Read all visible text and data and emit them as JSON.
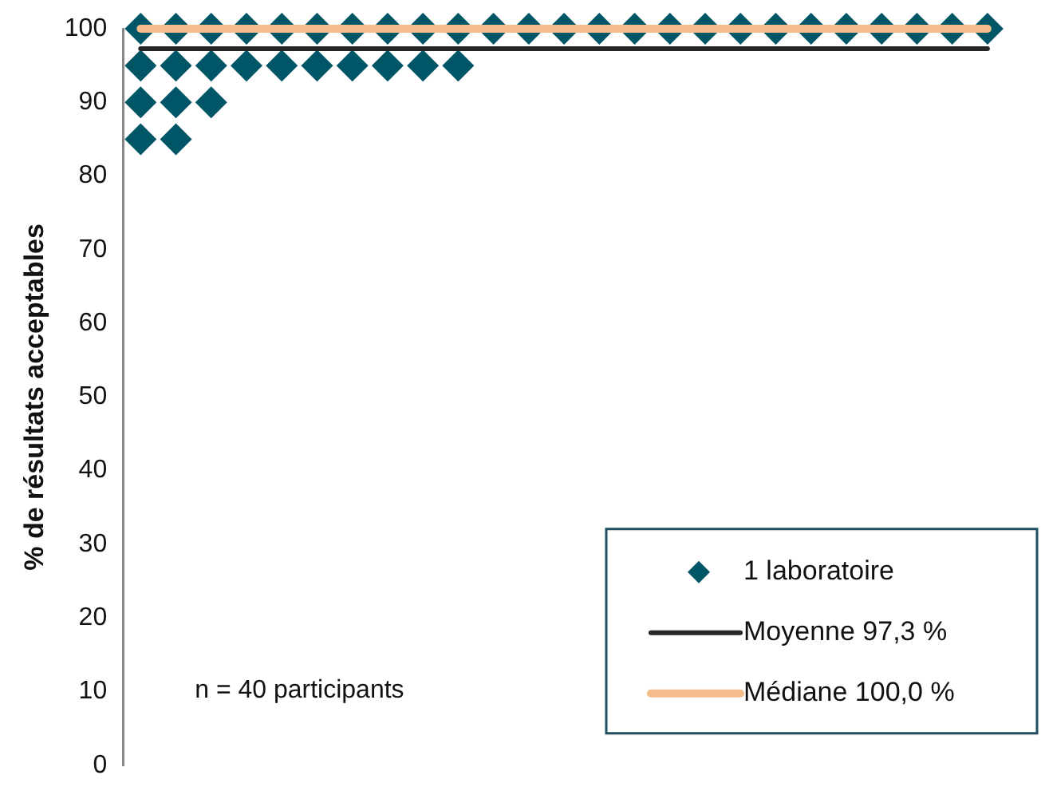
{
  "chart_data": {
    "type": "scatter",
    "ylabel": "% de résultats acceptables",
    "categories": [
      null,
      null,
      null,
      null,
      null,
      null,
      null,
      null,
      null,
      null,
      null,
      null,
      null,
      null,
      null,
      null,
      null,
      null,
      null,
      null,
      null,
      null,
      null,
      null,
      null
    ],
    "series": [
      {
        "type": "line",
        "name": "Moyenne 97,3 %",
        "color": "#262626",
        "values": [
          97.3,
          97.3,
          97.3,
          97.3,
          97.3,
          97.3,
          97.3,
          97.3,
          97.3,
          97.3,
          97.3,
          97.3,
          97.3,
          97.3,
          97.3,
          97.3,
          97.3,
          97.3,
          97.3,
          97.3,
          97.3,
          97.3,
          97.3,
          97.3,
          97.3
        ],
        "marker": "none"
      },
      {
        "type": "line",
        "name": "Médiane 100,0 %",
        "color": "#f5bd8c",
        "values": [
          100,
          100,
          100,
          100,
          100,
          100,
          100,
          100,
          100,
          100,
          100,
          100,
          100,
          100,
          100,
          100,
          100,
          100,
          100,
          100,
          100,
          100,
          100,
          100,
          100
        ],
        "marker": "none"
      },
      {
        "name": "1 laboratoire",
        "color": "#005566",
        "values": [
          100,
          100,
          100,
          100,
          100,
          100,
          100,
          100,
          100,
          100,
          100,
          100,
          100,
          100,
          100,
          100,
          100,
          100,
          100,
          100,
          100,
          100,
          100,
          100,
          100
        ]
      },
      {
        "color": "#005566",
        "values": [
          95,
          95,
          95,
          95,
          95,
          95,
          95,
          95,
          95,
          95,
          null,
          null,
          null,
          null,
          null,
          null,
          null,
          null,
          null,
          null,
          null,
          null,
          null,
          null,
          null
        ]
      },
      {
        "color": "#005566",
        "values": [
          90,
          90,
          90,
          null,
          null,
          null,
          null,
          null,
          null,
          null,
          null,
          null,
          null,
          null,
          null,
          null,
          null,
          null,
          null,
          null,
          null,
          null,
          null,
          null,
          null
        ]
      },
      {
        "color": "#005566",
        "values": [
          85,
          85,
          null,
          null,
          null,
          null,
          null,
          null,
          null,
          null,
          null,
          null,
          null,
          null,
          null,
          null,
          null,
          null,
          null,
          null,
          null,
          null,
          null,
          null,
          null
        ]
      }
    ],
    "marker": "diamond",
    "ylim": [
      0,
      100
    ],
    "yticks": [
      0,
      10,
      20,
      30,
      40,
      50,
      60,
      70,
      80,
      90,
      100
    ],
    "grid": false,
    "legend": "bottom right",
    "tick_labels": "y",
    "annotations": [
      "n = 40 participants"
    ]
  }
}
